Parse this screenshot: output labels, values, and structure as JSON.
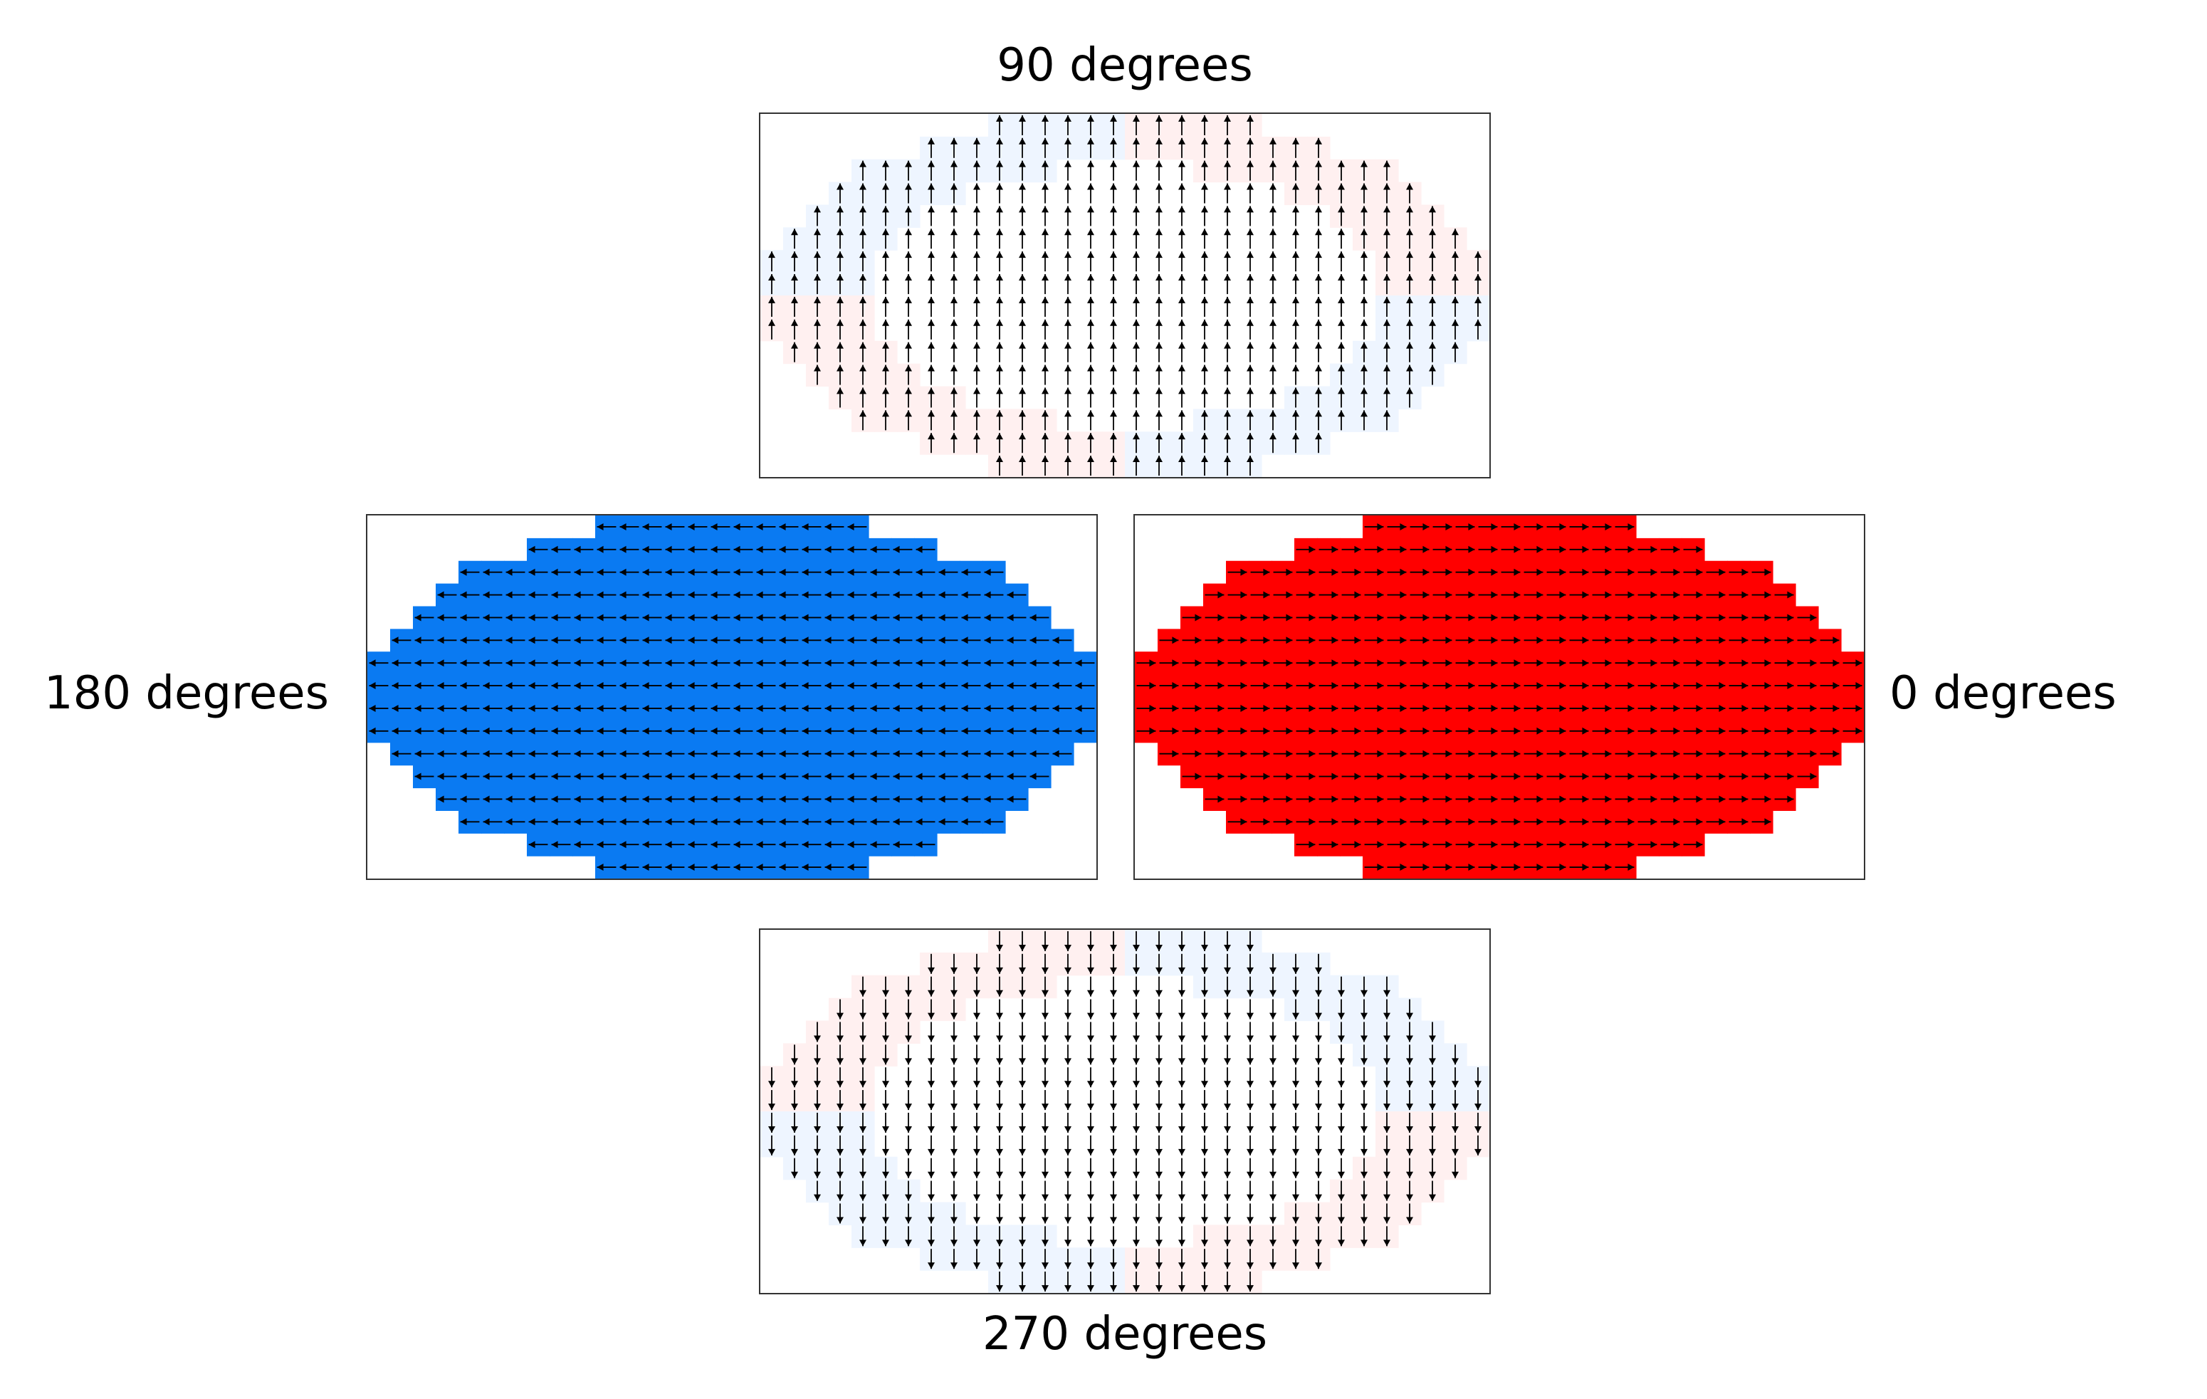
{
  "labels": {
    "top": "90 degrees",
    "left": "180 degrees",
    "right": "0 degrees",
    "bottom": "270 degrees"
  },
  "panels": [
    {
      "id": "panel-90",
      "angle_degrees": 90,
      "arrow_direction": "up",
      "fill": {
        "tone": "near-white",
        "color": "#ffffff",
        "edge_tints": {
          "upper-left": "#eef5ff",
          "upper-right": "#fff0f0",
          "lower-left": "#fff0f0",
          "lower-right": "#eef5ff"
        }
      }
    },
    {
      "id": "panel-180",
      "angle_degrees": 180,
      "arrow_direction": "left",
      "fill": {
        "tone": "solid",
        "color": "#0a7af2"
      }
    },
    {
      "id": "panel-0",
      "angle_degrees": 0,
      "arrow_direction": "right",
      "fill": {
        "tone": "solid",
        "color": "#ff0000"
      }
    },
    {
      "id": "panel-270",
      "angle_degrees": 270,
      "arrow_direction": "down",
      "fill": {
        "tone": "near-white",
        "color": "#ffffff",
        "edge_tints": {
          "upper-left": "#fff0f0",
          "upper-right": "#eef5ff",
          "lower-left": "#eef5ff",
          "lower-right": "#fff0f0"
        }
      }
    }
  ],
  "colors": {
    "arrow": "#000000",
    "panel_border": "#333333",
    "text": "#000000"
  }
}
